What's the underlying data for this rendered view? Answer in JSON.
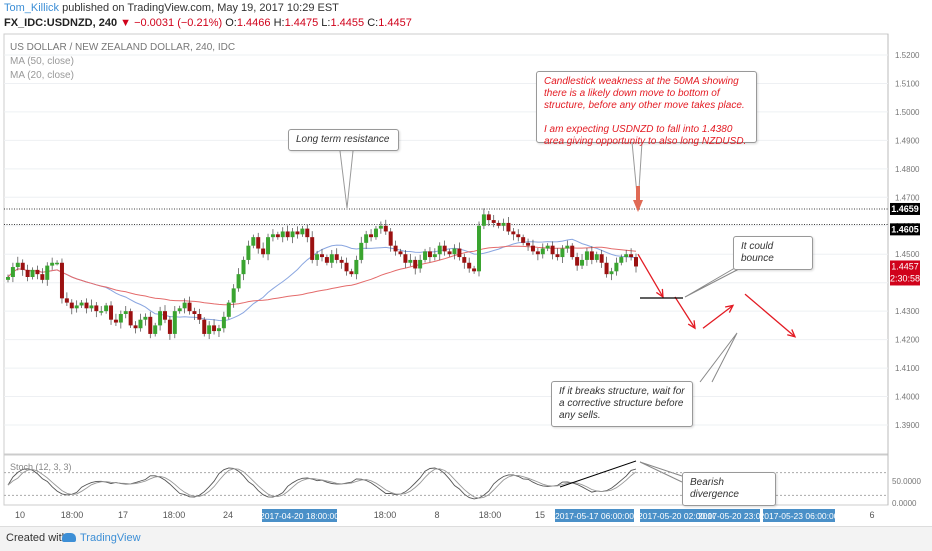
{
  "header": {
    "author": "Tom_Killick",
    "published": "published on TradingView.com, May 19, 2017 10:29 EST",
    "symbol": "FX_IDC:USDNZD, 240",
    "change": "▼ −0.0031 (−0.21%)",
    "ohlc_o": "O:",
    "o": "1.4466",
    "ohlc_h": "H:",
    "h": "1.4475",
    "ohlc_l": "L:",
    "l": "1.4455",
    "ohlc_c": "C:",
    "c": "1.4457"
  },
  "legend": {
    "title": "US DOLLAR / NEW ZEALAND DOLLAR, 240, IDC",
    "ma50": "MA (50, close)",
    "ma20": "MA (20, close)"
  },
  "annotations": {
    "resistance": "Long term resistance",
    "note1": "Candlestick weakness at the 50MA showing there is a likely down move to bottom of structure, before any other move takes place.",
    "note2": "I am expecting USDNZD to fall into 1.4380 area giving opportunity to also long NZDUSD.",
    "bounce": "It could bounce",
    "breaks": "If it breaks structure, wait for a corrective structure before any sells.",
    "divergence": "Bearish divergence"
  },
  "indicator": {
    "label": "Stoch (12, 3, 3)",
    "ticks": [
      "50.0000",
      "0.0000"
    ]
  },
  "price_labels": {
    "res_high": "1.4659",
    "res_low": "1.4605",
    "current": "1.4457",
    "countdown": "2:30:58"
  },
  "x_labels": [
    "10",
    "18:00",
    "17",
    "18:00",
    "24",
    "18:00",
    "8",
    "18:00",
    "15",
    "6"
  ],
  "x_highlights": [
    "2017-04-20 18:00:00",
    "2017-05-17 06:00:00",
    "2017-05-20 02:00:00",
    "2017-05-20 23:00:00",
    "2017-05-23 06:00:00"
  ],
  "footer": {
    "created": "Created with",
    "brand": "TradingView"
  },
  "colors": {
    "up": "#3aa430",
    "down": "#9b1111",
    "ma50": "#e46b6b",
    "ma20": "#8aa6e0",
    "arrow": "#e31b23",
    "author": "#3d8fd6"
  },
  "chart_data": {
    "type": "candlestick",
    "title": "US DOLLAR / NEW ZEALAND DOLLAR, 240, IDC",
    "y_ticks": [
      1.39,
      1.4,
      1.41,
      1.42,
      1.43,
      1.44,
      1.45,
      1.46,
      1.47,
      1.48,
      1.49,
      1.5,
      1.51,
      1.52
    ],
    "ylim": [
      1.386,
      1.528
    ],
    "resistance": [
      1.4659,
      1.4605
    ],
    "close_path": [
      1.442,
      1.4455,
      1.447,
      1.4445,
      1.442,
      1.4445,
      1.443,
      1.441,
      1.446,
      1.447,
      1.447,
      1.4345,
      1.433,
      1.431,
      1.432,
      1.433,
      1.431,
      1.432,
      1.43,
      1.43,
      1.432,
      1.427,
      1.426,
      1.429,
      1.43,
      1.425,
      1.424,
      1.427,
      1.428,
      1.422,
      1.425,
      1.43,
      1.427,
      1.422,
      1.43,
      1.431,
      1.433,
      1.43,
      1.429,
      1.427,
      1.422,
      1.425,
      1.423,
      1.424,
      1.428,
      1.433,
      1.438,
      1.443,
      1.448,
      1.453,
      1.456,
      1.452,
      1.45,
      1.456,
      1.457,
      1.456,
      1.458,
      1.456,
      1.458,
      1.457,
      1.459,
      1.456,
      1.448,
      1.45,
      1.449,
      1.447,
      1.45,
      1.448,
      1.447,
      1.444,
      1.443,
      1.448,
      1.454,
      1.457,
      1.456,
      1.459,
      1.46,
      1.458,
      1.453,
      1.451,
      1.45,
      1.447,
      1.448,
      1.445,
      1.448,
      1.451,
      1.449,
      1.45,
      1.453,
      1.451,
      1.45,
      1.452,
      1.449,
      1.447,
      1.445,
      1.444,
      1.46,
      1.464,
      1.462,
      1.461,
      1.46,
      1.461,
      1.458,
      1.457,
      1.456,
      1.454,
      1.453,
      1.451,
      1.45,
      1.452,
      1.453,
      1.45,
      1.449,
      1.452,
      1.453,
      1.449,
      1.446,
      1.448,
      1.451,
      1.448,
      1.45,
      1.447,
      1.443,
      1.444,
      1.447,
      1.449,
      1.45,
      1.449,
      1.4457
    ],
    "forecast_path": [
      [
        1.45,
        1.435
      ],
      [
        1.435,
        1.424
      ],
      [
        1.424,
        1.432
      ],
      [
        1.432,
        1.436
      ],
      [
        1.436,
        1.421
      ],
      [
        1.421,
        1.403
      ]
    ],
    "stochastic": {
      "ylim": [
        -5,
        110
      ],
      "ticks": [
        0,
        50
      ]
    }
  }
}
